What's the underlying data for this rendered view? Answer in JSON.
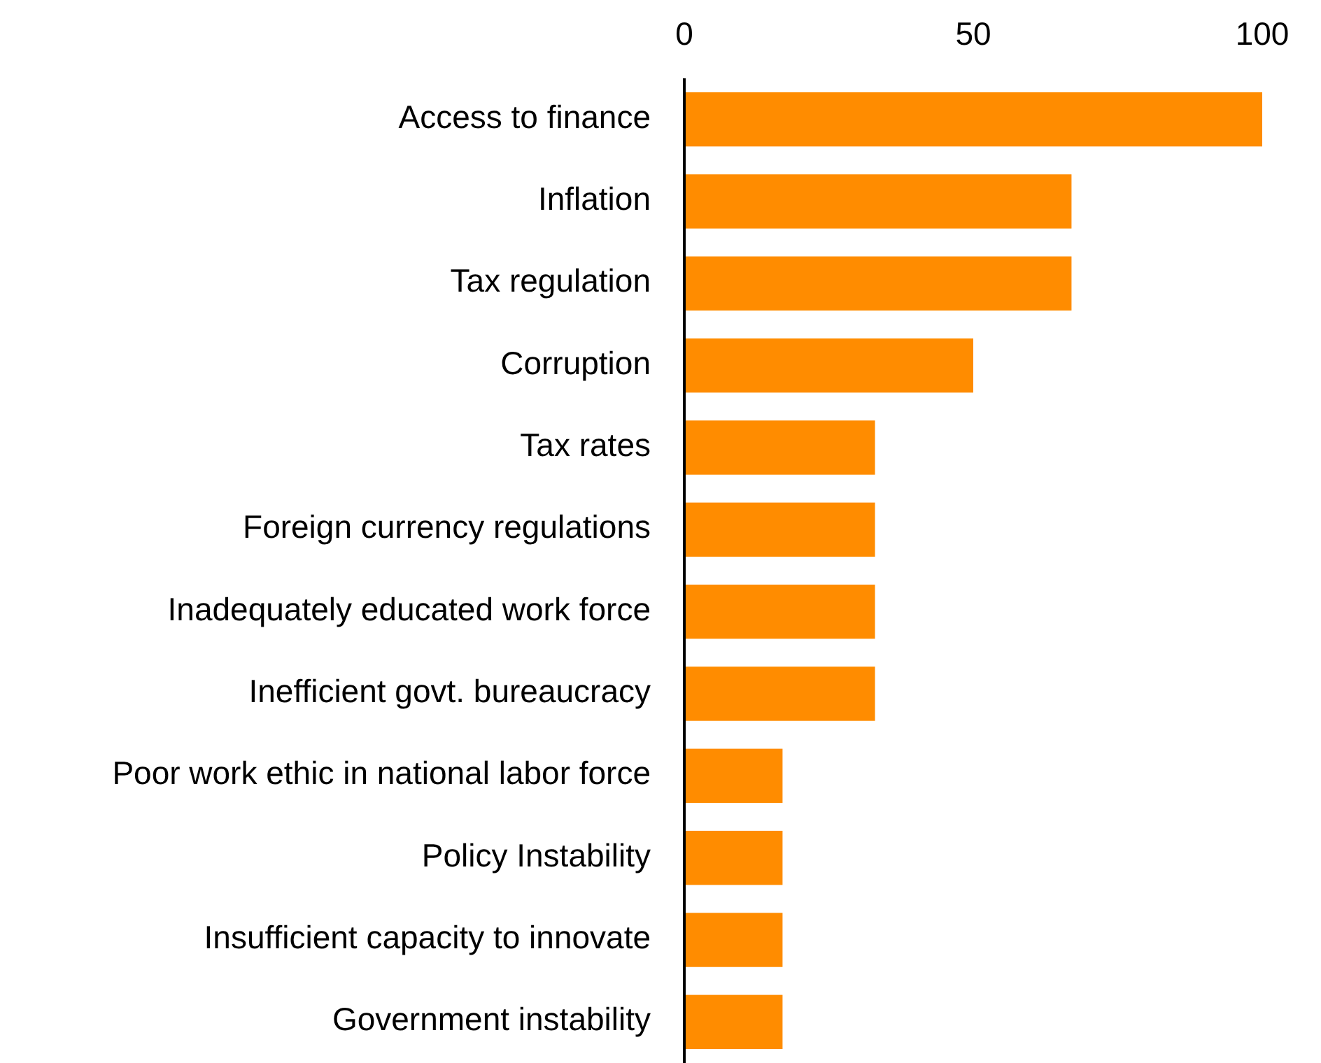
{
  "chart_data": {
    "type": "bar",
    "orientation": "horizontal",
    "categories": [
      "Access to finance",
      "Inflation",
      "Tax regulation",
      "Corruption",
      "Tax rates",
      "Foreign currency regulations",
      "Inadequately educated work force",
      "Inefficient govt. bureaucracy",
      "Poor work ethic in national labor force",
      "Policy Instability",
      "Insufficient capacity to innovate",
      "Government instability"
    ],
    "values": [
      100,
      67,
      67,
      50,
      33,
      33,
      33,
      33,
      17,
      17,
      17,
      17
    ],
    "color": "#ff8c00",
    "xlim": [
      0,
      100
    ],
    "xticks": [
      0,
      50,
      100
    ],
    "grid": false
  }
}
